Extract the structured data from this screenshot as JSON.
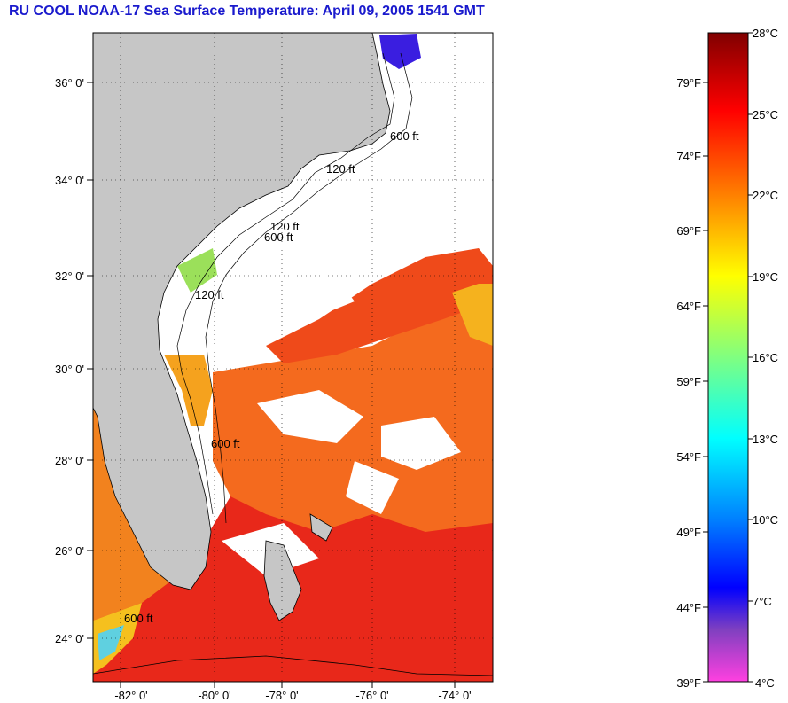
{
  "title": "RU COOL  NOAA-17  Sea Surface Temperature:  April 09, 2005 1541 GMT",
  "map": {
    "lat_labels": [
      "36° 0'",
      "34° 0'",
      "32° 0'",
      "30° 0'",
      "28° 0'",
      "26° 0'",
      "24° 0'"
    ],
    "lon_labels": [
      "-82° 0'",
      "-80° 0'",
      "-78° 0'",
      "-76° 0'",
      "-74° 0'"
    ],
    "contour_labels": [
      "600 ft",
      "120 ft",
      "600 ft",
      "120 ft",
      "600 ft",
      "120 ft",
      "600 ft"
    ],
    "colors": {
      "land": "#c8c8c8",
      "cloud": "#ffffff",
      "sea_warm": "#f0391c",
      "sea_mid": "#f4731e",
      "sea_cool": "#f7b81e"
    }
  },
  "colorbar": {
    "celsius_labels": [
      "28°C",
      "25°C",
      "22°C",
      "19°C",
      "16°C",
      "13°C",
      "10°C",
      "7°C",
      "4°C"
    ],
    "fahrenheit_labels": [
      "79°F",
      "74°F",
      "69°F",
      "64°F",
      "59°F",
      "54°F",
      "49°F",
      "44°F",
      "39°F"
    ],
    "stops": [
      "#800000",
      "#ff0000",
      "#ff8000",
      "#ffff00",
      "#80ff80",
      "#00ffff",
      "#0080ff",
      "#0000ff",
      "#8040c0",
      "#ff40e0"
    ]
  }
}
